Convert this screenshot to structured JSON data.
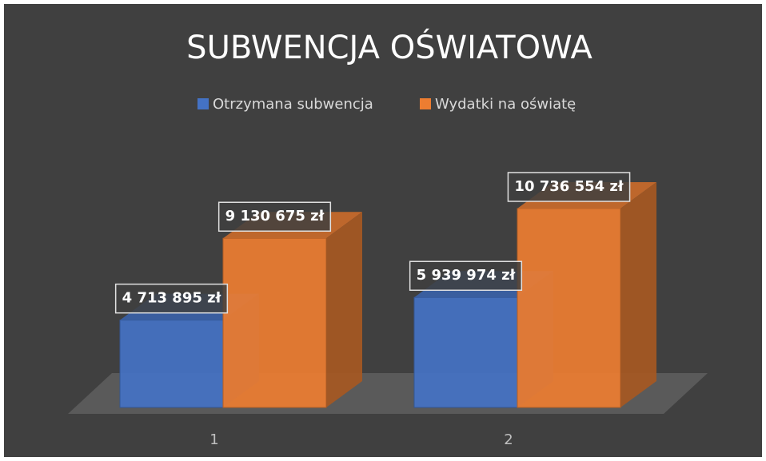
{
  "chart_data": {
    "type": "bar",
    "title": "SUBWENCJA OŚWIATOWA",
    "categories": [
      "1",
      "2"
    ],
    "series": [
      {
        "name": "Otrzymana subwencja",
        "color": "#4472c4",
        "values": [
          4713895,
          5939974
        ],
        "value_labels": [
          "4 713 895 zł",
          "5 939 974 zł"
        ]
      },
      {
        "name": "Wydatki na oświatę",
        "color": "#ed7d31",
        "values": [
          9130675,
          10736554
        ],
        "value_labels": [
          "9 130 675 zł",
          "10 736 554 zł"
        ]
      }
    ],
    "legend": "top"
  }
}
